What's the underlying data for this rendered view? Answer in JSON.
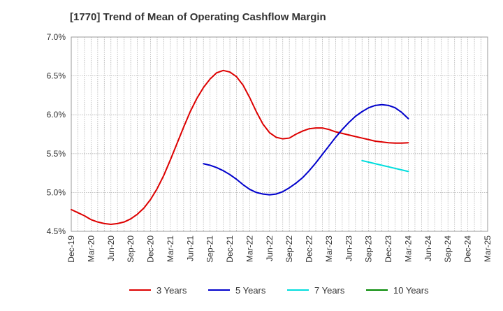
{
  "chart_data": {
    "type": "line",
    "title": "[1770]  Trend of Mean of Operating Cashflow Margin",
    "xlabel": "",
    "ylabel": "",
    "ylim": [
      4.5,
      7.0
    ],
    "y_ticks": [
      "4.5%",
      "5.0%",
      "5.5%",
      "6.0%",
      "6.5%",
      "7.0%"
    ],
    "y_tick_values": [
      4.5,
      5.0,
      5.5,
      6.0,
      6.5,
      7.0
    ],
    "x_ticks": [
      "Dec-19",
      "Mar-20",
      "Jun-20",
      "Sep-20",
      "Dec-20",
      "Mar-21",
      "Jun-21",
      "Sep-21",
      "Dec-21",
      "Mar-22",
      "Jun-22",
      "Sep-22",
      "Dec-22",
      "Mar-23",
      "Jun-23",
      "Sep-23",
      "Dec-23",
      "Mar-24",
      "Jun-24",
      "Sep-24",
      "Dec-24",
      "Mar-25"
    ],
    "grid": true,
    "legend_position": "bottom",
    "series": [
      {
        "name": "3 Years",
        "color": "#dd0000",
        "points": [
          [
            "Dec-19",
            4.78
          ],
          [
            "Jan-20",
            4.74
          ],
          [
            "Feb-20",
            4.7
          ],
          [
            "Mar-20",
            4.65
          ],
          [
            "Apr-20",
            4.62
          ],
          [
            "May-20",
            4.6
          ],
          [
            "Jun-20",
            4.59
          ],
          [
            "Jul-20",
            4.6
          ],
          [
            "Aug-20",
            4.62
          ],
          [
            "Sep-20",
            4.66
          ],
          [
            "Oct-20",
            4.72
          ],
          [
            "Nov-20",
            4.8
          ],
          [
            "Dec-20",
            4.91
          ],
          [
            "Jan-21",
            5.05
          ],
          [
            "Feb-21",
            5.22
          ],
          [
            "Mar-21",
            5.42
          ],
          [
            "Apr-21",
            5.63
          ],
          [
            "May-21",
            5.84
          ],
          [
            "Jun-21",
            6.04
          ],
          [
            "Jul-21",
            6.21
          ],
          [
            "Aug-21",
            6.35
          ],
          [
            "Sep-21",
            6.46
          ],
          [
            "Oct-21",
            6.54
          ],
          [
            "Nov-21",
            6.57
          ],
          [
            "Dec-21",
            6.55
          ],
          [
            "Jan-22",
            6.49
          ],
          [
            "Feb-22",
            6.38
          ],
          [
            "Mar-22",
            6.22
          ],
          [
            "Apr-22",
            6.04
          ],
          [
            "May-22",
            5.88
          ],
          [
            "Jun-22",
            5.77
          ],
          [
            "Jul-22",
            5.71
          ],
          [
            "Aug-22",
            5.69
          ],
          [
            "Sep-22",
            5.7
          ],
          [
            "Oct-22",
            5.75
          ],
          [
            "Nov-22",
            5.79
          ],
          [
            "Dec-22",
            5.82
          ],
          [
            "Jan-23",
            5.83
          ],
          [
            "Feb-23",
            5.83
          ],
          [
            "Mar-23",
            5.81
          ],
          [
            "Apr-23",
            5.78
          ],
          [
            "May-23",
            5.76
          ],
          [
            "Jun-23",
            5.74
          ],
          [
            "Jul-23",
            5.72
          ],
          [
            "Aug-23",
            5.7
          ],
          [
            "Sep-23",
            5.68
          ],
          [
            "Oct-23",
            5.66
          ],
          [
            "Nov-23",
            5.65
          ],
          [
            "Dec-23",
            5.64
          ],
          [
            "Jan-24",
            5.635
          ],
          [
            "Feb-24",
            5.635
          ],
          [
            "Mar-24",
            5.64
          ]
        ]
      },
      {
        "name": "5 Years",
        "color": "#0000cc",
        "points": [
          [
            "Aug-21",
            5.37
          ],
          [
            "Sep-21",
            5.35
          ],
          [
            "Oct-21",
            5.32
          ],
          [
            "Nov-21",
            5.28
          ],
          [
            "Dec-21",
            5.23
          ],
          [
            "Jan-22",
            5.17
          ],
          [
            "Feb-22",
            5.1
          ],
          [
            "Mar-22",
            5.04
          ],
          [
            "Apr-22",
            5.0
          ],
          [
            "May-22",
            4.98
          ],
          [
            "Jun-22",
            4.97
          ],
          [
            "Jul-22",
            4.98
          ],
          [
            "Aug-22",
            5.01
          ],
          [
            "Sep-22",
            5.06
          ],
          [
            "Oct-22",
            5.12
          ],
          [
            "Nov-22",
            5.19
          ],
          [
            "Dec-22",
            5.28
          ],
          [
            "Jan-23",
            5.38
          ],
          [
            "Feb-23",
            5.49
          ],
          [
            "Mar-23",
            5.6
          ],
          [
            "Apr-23",
            5.71
          ],
          [
            "May-23",
            5.81
          ],
          [
            "Jun-23",
            5.9
          ],
          [
            "Jul-23",
            5.98
          ],
          [
            "Aug-23",
            6.04
          ],
          [
            "Sep-23",
            6.09
          ],
          [
            "Oct-23",
            6.12
          ],
          [
            "Nov-23",
            6.13
          ],
          [
            "Dec-23",
            6.12
          ],
          [
            "Jan-24",
            6.09
          ],
          [
            "Feb-24",
            6.03
          ],
          [
            "Mar-24",
            5.95
          ]
        ]
      },
      {
        "name": "7 Years",
        "color": "#00dddd",
        "points": [
          [
            "Aug-23",
            5.41
          ],
          [
            "Sep-23",
            5.39
          ],
          [
            "Oct-23",
            5.37
          ],
          [
            "Nov-23",
            5.35
          ],
          [
            "Dec-23",
            5.33
          ],
          [
            "Jan-24",
            5.31
          ],
          [
            "Feb-24",
            5.29
          ],
          [
            "Mar-24",
            5.27
          ]
        ]
      },
      {
        "name": "10 Years",
        "color": "#008800",
        "points": []
      }
    ]
  }
}
